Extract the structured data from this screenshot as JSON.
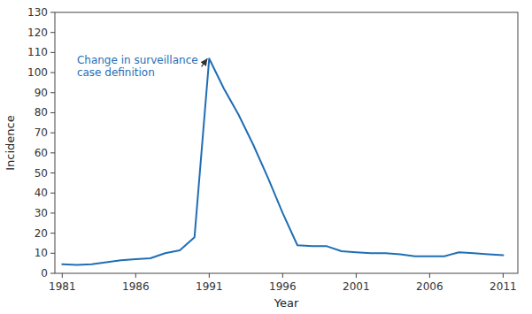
{
  "chart_data": {
    "type": "line",
    "x": [
      1981,
      1982,
      1983,
      1984,
      1985,
      1986,
      1987,
      1988,
      1989,
      1990,
      1991,
      1992,
      1993,
      1994,
      1995,
      1996,
      1997,
      1998,
      1999,
      2000,
      2001,
      2002,
      2003,
      2004,
      2005,
      2006,
      2007,
      2008,
      2009,
      2010,
      2011
    ],
    "values": [
      4.5,
      4.2,
      4.5,
      5.5,
      6.5,
      7.0,
      7.5,
      10.0,
      11.5,
      18.0,
      107.0,
      92.0,
      79.0,
      64.0,
      47.5,
      30.0,
      14.0,
      13.5,
      13.5,
      11.0,
      10.5,
      10.0,
      10.0,
      9.5,
      8.5,
      8.5,
      8.5,
      10.5,
      10.0,
      9.5,
      9.0
    ],
    "color": "#1f6eb5",
    "xlim": [
      1980.5,
      2012
    ],
    "ylim": [
      0,
      130
    ],
    "xticks": [
      1981,
      1986,
      1991,
      1996,
      2001,
      2006,
      2011
    ],
    "yticks": [
      0,
      10,
      20,
      30,
      40,
      50,
      60,
      70,
      80,
      90,
      100,
      110,
      120,
      130
    ],
    "xlabel": "Year",
    "ylabel": "Incidence",
    "grid": false,
    "annotations": [
      {
        "text": "Change in surveillance\ncase definition",
        "x": 1982.0,
        "y": 109.0,
        "arrow_x": 1991.0,
        "arrow_y": 107.0,
        "color": "#1f6eb5"
      }
    ]
  }
}
